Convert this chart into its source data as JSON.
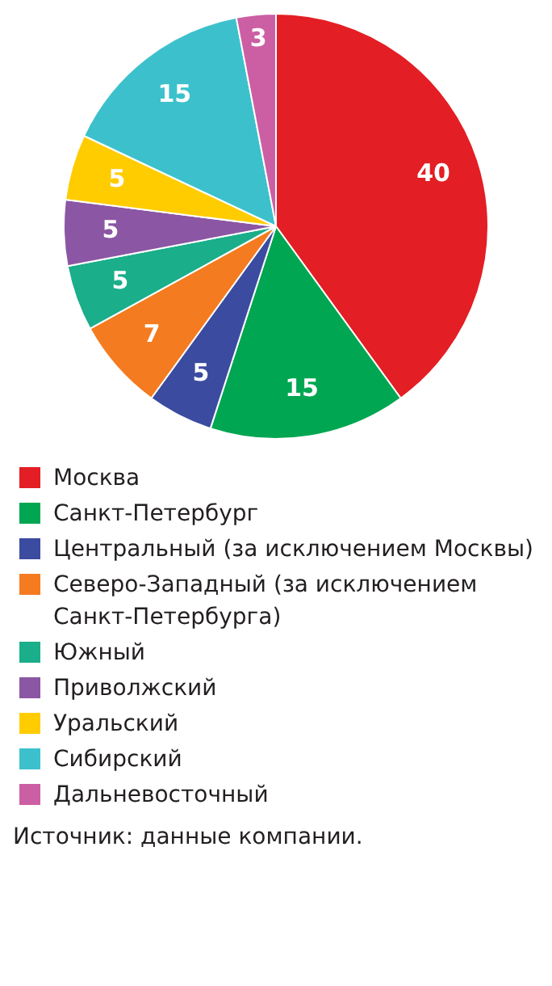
{
  "chart_data": {
    "type": "pie",
    "categories": [
      "Москва",
      "Санкт-Петербург",
      "Центральный (за исключением Москвы)",
      "Северо-Западный (за исключением Санкт-Петербурга)",
      "Южный",
      "Приволжский",
      "Уральский",
      "Сибирский",
      "Дальневосточный"
    ],
    "values": [
      40,
      15,
      5,
      7,
      5,
      5,
      5,
      15,
      3
    ],
    "colors": [
      "#e31e24",
      "#00a651",
      "#3b4ba0",
      "#f47b20",
      "#1aae8a",
      "#8b56a3",
      "#ffcc00",
      "#3cc1cc",
      "#cc5fa3"
    ],
    "data_labels": true,
    "legend": "bottom",
    "annotations": [
      "Источник: данные компании."
    ]
  }
}
